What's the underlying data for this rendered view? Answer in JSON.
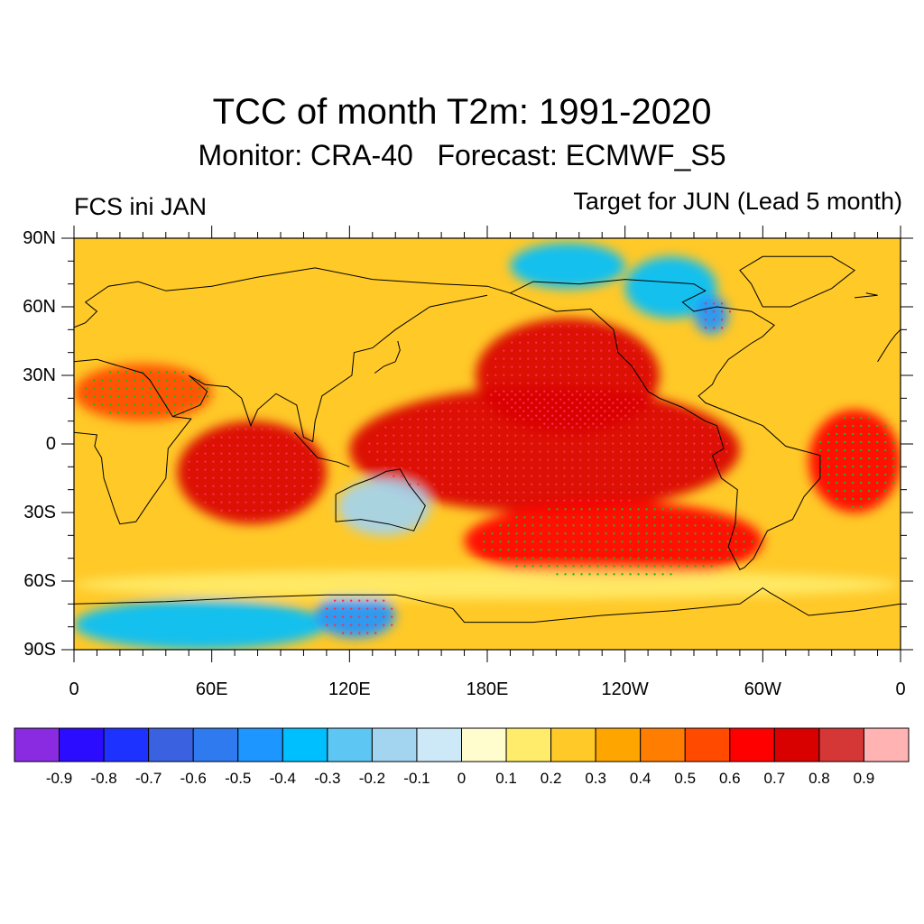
{
  "title": "TCC of month T2m: 1991-2020",
  "subtitle": "Monitor: CRA-40   Forecast: ECMWF_S5",
  "left_label": "FCS ini JAN",
  "right_label": "Target for JUN (Lead 5 month)",
  "lat_ticks": [
    "90N",
    "60N",
    "30N",
    "0",
    "30S",
    "60S",
    "90S"
  ],
  "lon_ticks": [
    "0",
    "60E",
    "120E",
    "180E",
    "120W",
    "60W",
    "0"
  ],
  "colorbar": {
    "colors": [
      "#8a2be2",
      "#2c0cff",
      "#1e32ff",
      "#3a62e0",
      "#2e7aee",
      "#1e96ff",
      "#00bfff",
      "#5ec6f2",
      "#a3d4f0",
      "#cde9f8",
      "#fffccd",
      "#ffec6a",
      "#ffc928",
      "#ffa500",
      "#ff7d00",
      "#ff4a00",
      "#ff0000",
      "#d90000",
      "#d53636",
      "#ffb3b3"
    ],
    "labels": [
      "-0.9",
      "-0.8",
      "-0.7",
      "-0.6",
      "-0.5",
      "-0.4",
      "-0.3",
      "-0.2",
      "-0.1",
      "0",
      "0.1",
      "0.2",
      "0.3",
      "0.4",
      "0.5",
      "0.6",
      "0.7",
      "0.8",
      "0.9"
    ]
  },
  "map": {
    "lon_range": [
      0,
      360
    ],
    "lat_range": [
      -90,
      90
    ],
    "field": "Temporal correlation coefficient, 2m temperature, June forecast initialized January",
    "regions": [
      {
        "name": "tropical-pacific-band",
        "lon": [
          120,
          290
        ],
        "lat": [
          -30,
          25
        ],
        "tcc": 0.75
      },
      {
        "name": "north-pacific-high",
        "lon": [
          175,
          255
        ],
        "lat": [
          5,
          55
        ],
        "tcc": 0.7
      },
      {
        "name": "indian-ocean",
        "lon": [
          45,
          110
        ],
        "lat": [
          -35,
          10
        ],
        "tcc": 0.7
      },
      {
        "name": "south-pacific-high",
        "lon": [
          170,
          300
        ],
        "lat": [
          -60,
          -25
        ],
        "tcc": 0.65
      },
      {
        "name": "tropical-atlantic",
        "lon": [
          320,
          360
        ],
        "lat": [
          -30,
          15
        ],
        "tcc": 0.65
      },
      {
        "name": "north-africa-arabia",
        "lon": [
          0,
          60
        ],
        "lat": [
          10,
          35
        ],
        "tcc": 0.55
      },
      {
        "name": "australia",
        "lon": [
          115,
          155
        ],
        "lat": [
          -40,
          -15
        ],
        "tcc": -0.15
      },
      {
        "name": "east-antarctica",
        "lon": [
          0,
          110
        ],
        "lat": [
          -90,
          -68
        ],
        "tcc": -0.35
      },
      {
        "name": "antarctica-120e",
        "lon": [
          105,
          140
        ],
        "lat": [
          -85,
          -65
        ],
        "tcc": -0.45
      },
      {
        "name": "arctic-siberia",
        "lon": [
          190,
          240
        ],
        "lat": [
          68,
          88
        ],
        "tcc": -0.3
      },
      {
        "name": "canadian-archipelago",
        "lon": [
          240,
          280
        ],
        "lat": [
          55,
          82
        ],
        "tcc": -0.3
      },
      {
        "name": "hudson-bay",
        "lon": [
          270,
          285
        ],
        "lat": [
          48,
          65
        ],
        "tcc": -0.45
      },
      {
        "name": "southern-ocean-belt",
        "lon": [
          0,
          360
        ],
        "lat": [
          -68,
          -55
        ],
        "tcc": 0.1
      }
    ]
  }
}
